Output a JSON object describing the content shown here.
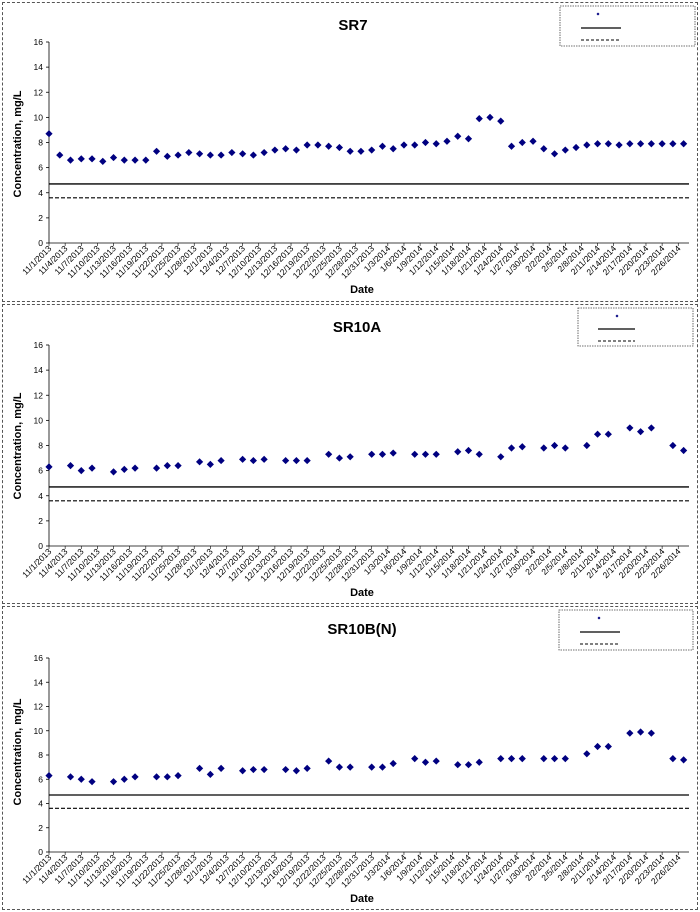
{
  "x_dates": [
    "11/1/2013",
    "11/4/2013",
    "11/7/2013",
    "11/10/2013",
    "11/13/2013",
    "11/16/2013",
    "11/19/2013",
    "11/22/2013",
    "11/25/2013",
    "11/28/2013",
    "12/1/2013",
    "12/4/2013",
    "12/7/2013",
    "12/10/2013",
    "12/13/2013",
    "12/16/2013",
    "12/19/2013",
    "12/22/2013",
    "12/25/2013",
    "12/28/2013",
    "12/31/2013",
    "1/3/2014",
    "1/6/2014",
    "1/9/2014",
    "1/12/2014",
    "1/15/2014",
    "1/18/2014",
    "1/21/2014",
    "1/24/2014",
    "1/27/2014",
    "1/30/2014",
    "2/2/2014",
    "2/5/2014",
    "2/8/2014",
    "2/11/2014",
    "2/14/2014",
    "2/17/2014",
    "2/20/2014",
    "2/23/2014",
    "2/26/2014"
  ],
  "chart_data": [
    {
      "type": "scatter",
      "title": "SR7",
      "xlabel": "Date",
      "ylabel": "Concentration, mg/L",
      "ylim": [
        0,
        16
      ],
      "yticks": [
        0,
        2,
        4,
        6,
        8,
        10,
        12,
        14,
        16
      ],
      "xlim": [
        "11/1/2013",
        "2/28/2014"
      ],
      "grid": false,
      "legend_position": "top-right",
      "series": [
        {
          "marker": "diamond",
          "color": "#000080",
          "x": [
            "11/1/2013",
            "11/3/2013",
            "11/5/2013",
            "11/7/2013",
            "11/9/2013",
            "11/11/2013",
            "11/13/2013",
            "11/15/2013",
            "11/17/2013",
            "11/19/2013",
            "11/21/2013",
            "11/23/2013",
            "11/25/2013",
            "11/27/2013",
            "11/29/2013",
            "12/1/2013",
            "12/3/2013",
            "12/5/2013",
            "12/7/2013",
            "12/9/2013",
            "12/11/2013",
            "12/13/2013",
            "12/15/2013",
            "12/17/2013",
            "12/19/2013",
            "12/21/2013",
            "12/23/2013",
            "12/25/2013",
            "12/27/2013",
            "12/29/2013",
            "12/31/2013",
            "1/2/2014",
            "1/4/2014",
            "1/6/2014",
            "1/8/2014",
            "1/10/2014",
            "1/12/2014",
            "1/14/2014",
            "1/16/2014",
            "1/18/2014",
            "1/20/2014",
            "1/22/2014",
            "1/24/2014",
            "1/26/2014",
            "1/28/2014",
            "1/30/2014",
            "2/1/2014",
            "2/3/2014",
            "2/5/2014",
            "2/7/2014",
            "2/9/2014",
            "2/11/2014",
            "2/13/2014",
            "2/15/2014",
            "2/17/2014",
            "2/19/2014",
            "2/21/2014",
            "2/23/2014",
            "2/25/2014",
            "2/27/2014"
          ],
          "y": [
            8.7,
            7.0,
            6.6,
            6.7,
            6.7,
            6.5,
            6.8,
            6.6,
            6.6,
            6.6,
            7.3,
            6.9,
            7.0,
            7.2,
            7.1,
            7.0,
            7.0,
            7.2,
            7.1,
            7.0,
            7.2,
            7.4,
            7.5,
            7.4,
            7.8,
            7.8,
            7.7,
            7.6,
            7.3,
            7.3,
            7.4,
            7.7,
            7.5,
            7.8,
            7.8,
            8.0,
            7.9,
            8.1,
            8.5,
            8.3,
            9.9,
            10.0,
            9.7,
            7.7,
            8.0,
            8.1,
            7.5,
            7.1,
            7.4,
            7.6,
            7.8,
            7.9,
            7.9,
            7.8,
            7.9,
            7.9,
            7.9,
            7.9,
            7.9,
            7.9
          ]
        }
      ],
      "reference_lines": [
        {
          "style": "solid",
          "y": 4.7
        },
        {
          "style": "dashed",
          "y": 3.6
        }
      ]
    },
    {
      "type": "scatter",
      "title": "SR10A",
      "xlabel": "Date",
      "ylabel": "Concentration, mg/L",
      "ylim": [
        0,
        16
      ],
      "yticks": [
        0,
        2,
        4,
        6,
        8,
        10,
        12,
        14,
        16
      ],
      "xlim": [
        "11/1/2013",
        "2/28/2014"
      ],
      "grid": false,
      "legend_position": "top-right",
      "series": [
        {
          "marker": "diamond",
          "color": "#000080",
          "x": [
            "11/1/2013",
            "11/5/2013",
            "11/7/2013",
            "11/9/2013",
            "11/13/2013",
            "11/15/2013",
            "11/17/2013",
            "11/21/2013",
            "11/23/2013",
            "11/25/2013",
            "11/29/2013",
            "12/1/2013",
            "12/3/2013",
            "12/7/2013",
            "12/9/2013",
            "12/11/2013",
            "12/15/2013",
            "12/17/2013",
            "12/19/2013",
            "12/23/2013",
            "12/25/2013",
            "12/27/2013",
            "12/31/2013",
            "1/2/2014",
            "1/4/2014",
            "1/8/2014",
            "1/10/2014",
            "1/12/2014",
            "1/16/2014",
            "1/18/2014",
            "1/20/2014",
            "1/24/2014",
            "1/26/2014",
            "1/28/2014",
            "2/1/2014",
            "2/3/2014",
            "2/5/2014",
            "2/9/2014",
            "2/11/2014",
            "2/13/2014",
            "2/17/2014",
            "2/19/2014",
            "2/21/2014",
            "2/25/2014",
            "2/27/2014"
          ],
          "y": [
            6.3,
            6.4,
            6.0,
            6.2,
            5.9,
            6.1,
            6.2,
            6.2,
            6.4,
            6.4,
            6.7,
            6.5,
            6.8,
            6.9,
            6.8,
            6.9,
            6.8,
            6.8,
            6.8,
            7.3,
            7.0,
            7.1,
            7.3,
            7.3,
            7.4,
            7.3,
            7.3,
            7.3,
            7.5,
            7.6,
            7.3,
            7.1,
            7.8,
            7.9,
            7.8,
            8.0,
            7.8,
            8.0,
            8.9,
            8.9,
            9.4,
            9.1,
            9.4,
            8.0,
            7.6
          ]
        }
      ],
      "reference_lines": [
        {
          "style": "solid",
          "y": 4.7
        },
        {
          "style": "dashed",
          "y": 3.6
        }
      ]
    },
    {
      "type": "scatter",
      "title": "SR10B(N)",
      "xlabel": "Date",
      "ylabel": "Concentration, mg/L",
      "ylim": [
        0,
        16
      ],
      "yticks": [
        0,
        2,
        4,
        6,
        8,
        10,
        12,
        14,
        16
      ],
      "xlim": [
        "11/1/2013",
        "2/28/2014"
      ],
      "grid": false,
      "legend_position": "top-right",
      "series": [
        {
          "marker": "diamond",
          "color": "#000080",
          "x": [
            "11/1/2013",
            "11/5/2013",
            "11/7/2013",
            "11/9/2013",
            "11/13/2013",
            "11/15/2013",
            "11/17/2013",
            "11/21/2013",
            "11/23/2013",
            "11/25/2013",
            "11/29/2013",
            "12/1/2013",
            "12/3/2013",
            "12/7/2013",
            "12/9/2013",
            "12/11/2013",
            "12/15/2013",
            "12/17/2013",
            "12/19/2013",
            "12/23/2013",
            "12/25/2013",
            "12/27/2013",
            "12/31/2013",
            "1/2/2014",
            "1/4/2014",
            "1/8/2014",
            "1/10/2014",
            "1/12/2014",
            "1/16/2014",
            "1/18/2014",
            "1/20/2014",
            "1/24/2014",
            "1/26/2014",
            "1/28/2014",
            "2/1/2014",
            "2/3/2014",
            "2/5/2014",
            "2/9/2014",
            "2/11/2014",
            "2/13/2014",
            "2/17/2014",
            "2/19/2014",
            "2/21/2014",
            "2/25/2014",
            "2/27/2014"
          ],
          "y": [
            6.3,
            6.2,
            6.0,
            5.8,
            5.8,
            6.0,
            6.2,
            6.2,
            6.2,
            6.3,
            6.9,
            6.4,
            6.9,
            6.7,
            6.8,
            6.8,
            6.8,
            6.7,
            6.9,
            7.5,
            7.0,
            7.0,
            7.0,
            7.0,
            7.3,
            7.7,
            7.4,
            7.5,
            7.2,
            7.2,
            7.4,
            7.7,
            7.7,
            7.7,
            7.7,
            7.7,
            7.7,
            8.1,
            8.7,
            8.7,
            9.8,
            9.9,
            9.8,
            7.7,
            7.6
          ]
        }
      ],
      "reference_lines": [
        {
          "style": "solid",
          "y": 4.7
        },
        {
          "style": "dashed",
          "y": 3.6
        }
      ]
    }
  ]
}
